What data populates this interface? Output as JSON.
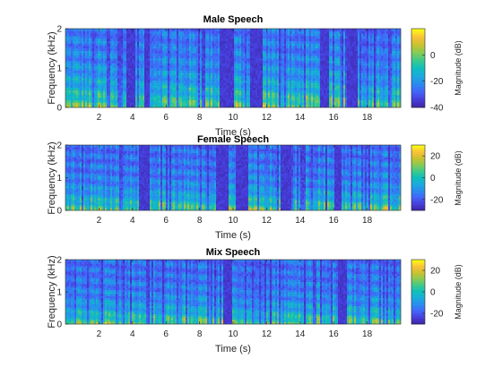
{
  "chart_data": [
    {
      "type": "heatmap",
      "title": "Male Speech",
      "xlabel": "Time (s)",
      "ylabel": "Frequency (kHz)",
      "xlim": [
        0,
        20
      ],
      "ylim": [
        0,
        2
      ],
      "xticks": [
        2,
        4,
        6,
        8,
        10,
        12,
        14,
        16,
        18
      ],
      "yticks": [
        0,
        1,
        2
      ],
      "colorbar": {
        "label": "Magnitude (dB)",
        "clim": [
          -40,
          20
        ],
        "ticks": [
          -40,
          -20,
          0
        ]
      },
      "colormap": "parula",
      "silence_intervals_s": [
        [
          3.6,
          4.2
        ],
        [
          4.7,
          5.0
        ],
        [
          9.2,
          10.0
        ],
        [
          11.0,
          11.8
        ],
        [
          15.2,
          15.7
        ],
        [
          16.8,
          17.4
        ]
      ]
    },
    {
      "type": "heatmap",
      "title": "Female Speech",
      "xlabel": "Time (s)",
      "ylabel": "Frequency (kHz)",
      "xlim": [
        0,
        20
      ],
      "ylim": [
        0,
        2
      ],
      "xticks": [
        2,
        4,
        6,
        8,
        10,
        12,
        14,
        16,
        18
      ],
      "yticks": [
        0,
        1,
        2
      ],
      "colorbar": {
        "label": "Magnitude (dB)",
        "clim": [
          -30,
          30
        ],
        "ticks": [
          -20,
          0,
          20
        ]
      },
      "colormap": "parula",
      "silence_intervals_s": [
        [
          4.4,
          5.0
        ],
        [
          9.0,
          9.7
        ],
        [
          10.2,
          10.9
        ],
        [
          12.8,
          13.5
        ],
        [
          16.0,
          16.5
        ]
      ]
    },
    {
      "type": "heatmap",
      "title": "Mix Speech",
      "xlabel": "Time (s)",
      "ylabel": "Frequency (kHz)",
      "xlim": [
        0,
        20
      ],
      "ylim": [
        0,
        2
      ],
      "xticks": [
        2,
        4,
        6,
        8,
        10,
        12,
        14,
        16,
        18
      ],
      "yticks": [
        0,
        1,
        2
      ],
      "colorbar": {
        "label": "Magnitude (dB)",
        "clim": [
          -30,
          30
        ],
        "ticks": [
          -20,
          0,
          20
        ]
      },
      "colormap": "parula",
      "silence_intervals_s": [
        [
          9.4,
          9.9
        ],
        [
          16.3,
          16.8
        ]
      ]
    }
  ]
}
